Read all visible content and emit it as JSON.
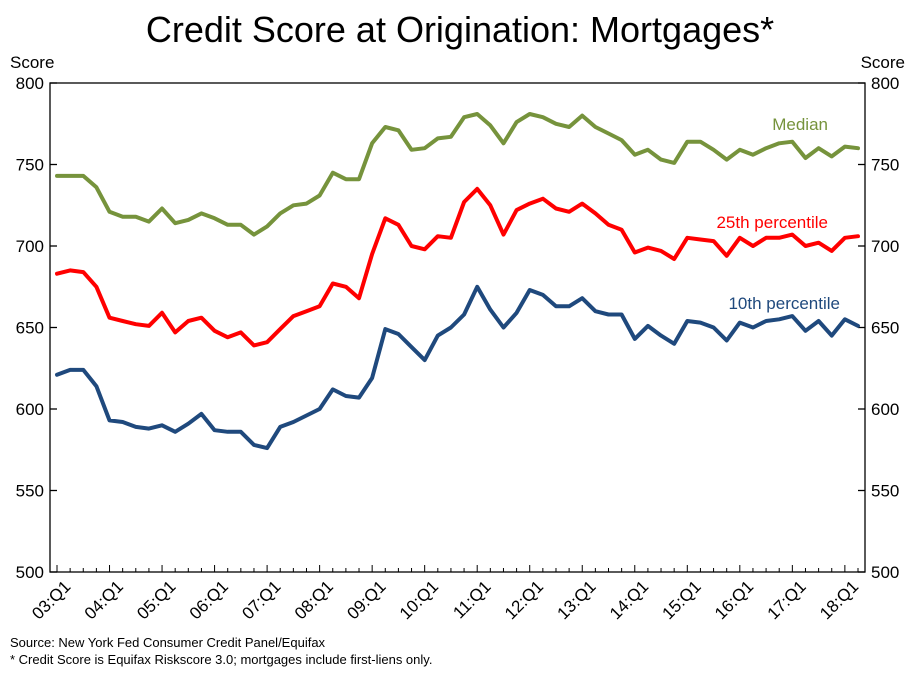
{
  "chart_data": {
    "type": "line",
    "title": "Credit Score at Origination: Mortgages*",
    "ylabel_left": "Score",
    "ylabel_right": "Score",
    "ylim": [
      500,
      800
    ],
    "yticks": [
      500,
      550,
      600,
      650,
      700,
      750,
      800
    ],
    "x_tick_labels": [
      "03:Q1",
      "04:Q1",
      "05:Q1",
      "06:Q1",
      "07:Q1",
      "08:Q1",
      "09:Q1",
      "10:Q1",
      "11:Q1",
      "12:Q1",
      "13:Q1",
      "14:Q1",
      "15:Q1",
      "16:Q1",
      "17:Q1",
      "18:Q1"
    ],
    "x_start": "2003:Q1",
    "frequency": "quarterly",
    "grid": false,
    "series": [
      {
        "name": "Median",
        "color": "#76933c",
        "values": [
          743,
          743,
          743,
          736,
          721,
          718,
          718,
          715,
          723,
          714,
          716,
          720,
          717,
          713,
          713,
          707,
          712,
          720,
          725,
          726,
          731,
          745,
          741,
          741,
          763,
          773,
          771,
          759,
          760,
          766,
          767,
          779,
          781,
          774,
          763,
          776,
          781,
          779,
          775,
          773,
          780,
          773,
          769,
          765,
          756,
          759,
          753,
          751,
          764,
          764,
          759,
          753,
          759,
          756,
          760,
          763,
          764,
          754,
          760,
          755,
          761,
          760
        ]
      },
      {
        "name": "25th percentile",
        "color": "#ff0000",
        "values": [
          683,
          685,
          684,
          675,
          656,
          654,
          652,
          651,
          659,
          647,
          654,
          656,
          648,
          644,
          647,
          639,
          641,
          649,
          657,
          660,
          663,
          677,
          675,
          668,
          695,
          717,
          713,
          700,
          698,
          706,
          705,
          727,
          735,
          725,
          707,
          722,
          726,
          729,
          723,
          721,
          726,
          720,
          713,
          710,
          696,
          699,
          697,
          692,
          705,
          704,
          703,
          694,
          705,
          700,
          705,
          705,
          707,
          700,
          702,
          697,
          705,
          706
        ]
      },
      {
        "name": "10th percentile",
        "color": "#1f497d",
        "values": [
          621,
          624,
          624,
          614,
          593,
          592,
          589,
          588,
          590,
          586,
          591,
          597,
          587,
          586,
          586,
          578,
          576,
          589,
          592,
          596,
          600,
          612,
          608,
          607,
          619,
          649,
          646,
          638,
          630,
          645,
          650,
          658,
          675,
          661,
          650,
          659,
          673,
          670,
          663,
          663,
          668,
          660,
          658,
          658,
          643,
          651,
          645,
          640,
          654,
          653,
          650,
          642,
          653,
          650,
          654,
          655,
          657,
          648,
          654,
          645,
          655,
          651
        ]
      }
    ]
  },
  "footnotes": {
    "source": "Source: New York Fed Consumer Credit Panel/Equifax",
    "note": "* Credit Score is Equifax Riskscore 3.0; mortgages include first-liens only."
  }
}
